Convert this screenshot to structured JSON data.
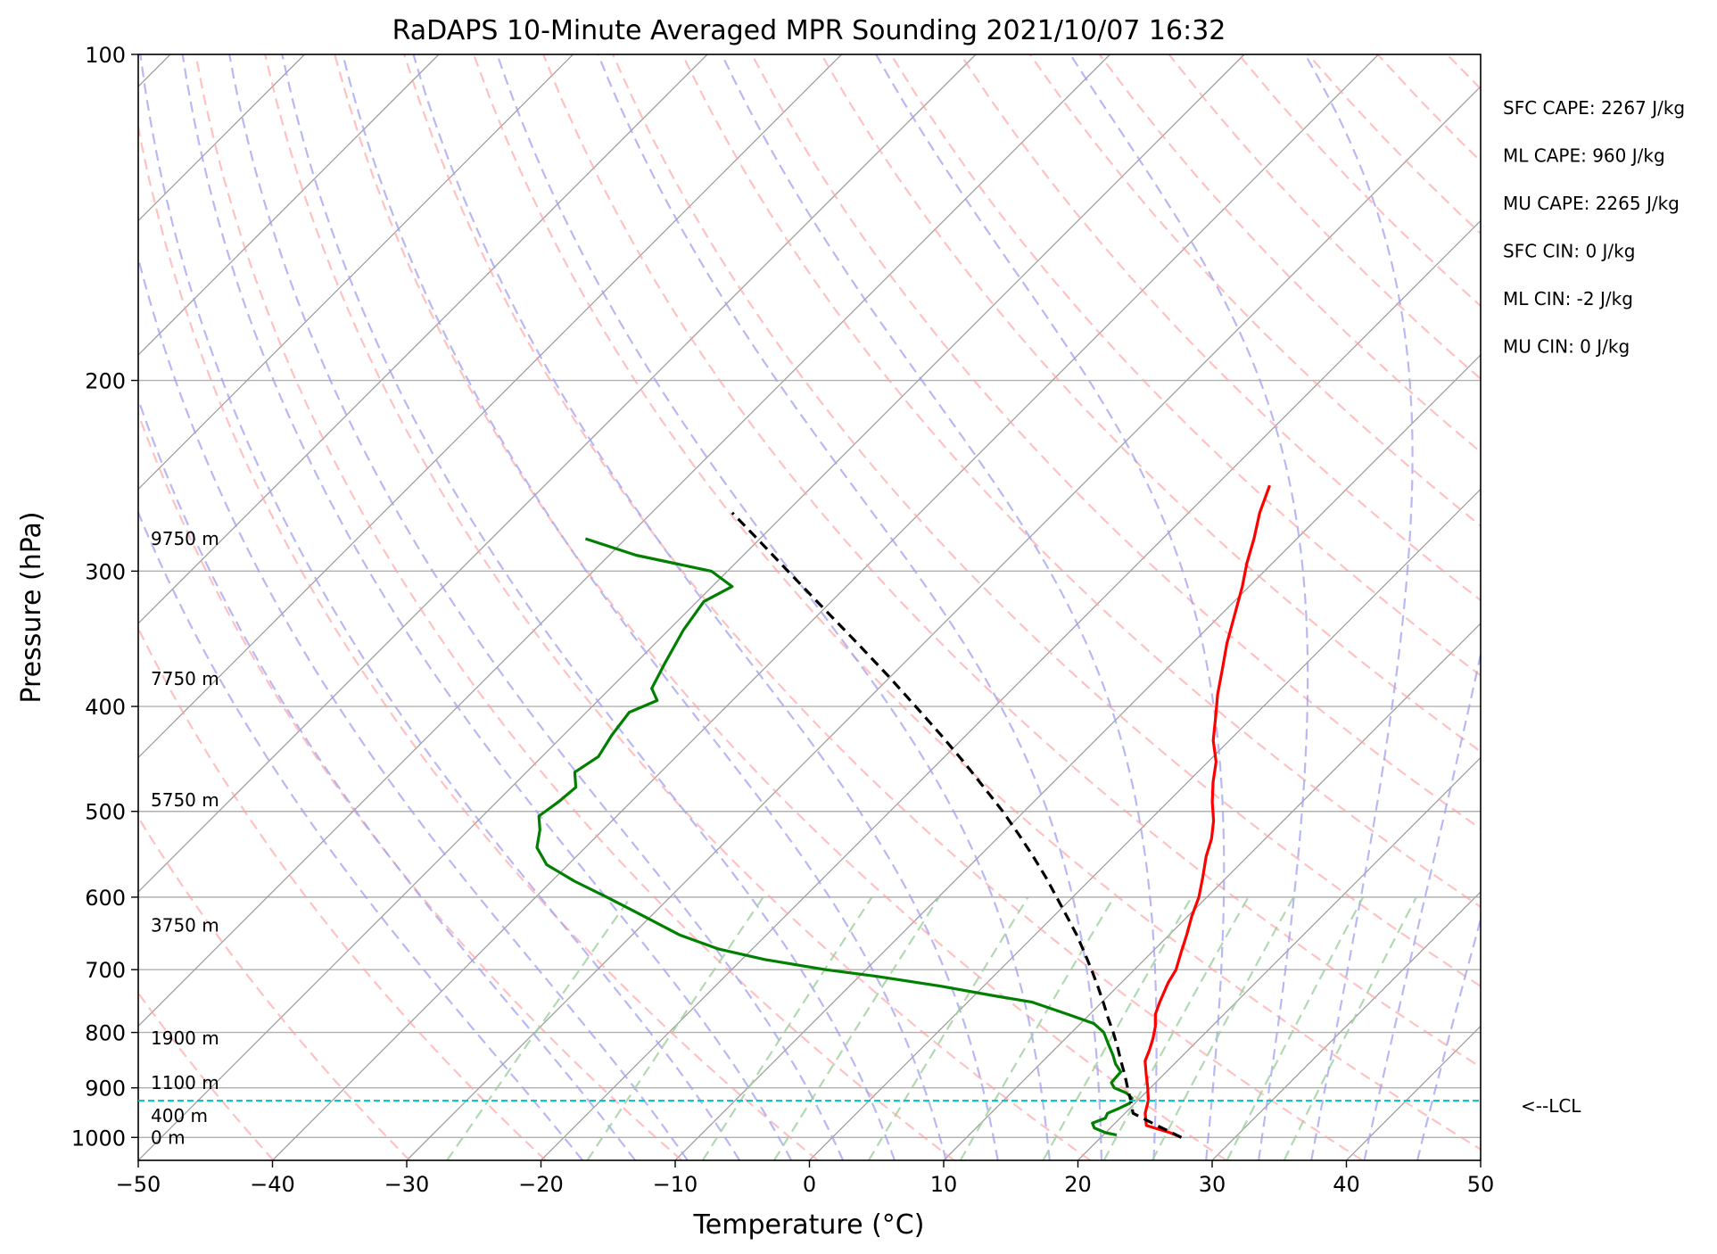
{
  "chart_data": {
    "type": "line",
    "title": "RaDAPS 10-Minute Averaged MPR Sounding 2021/10/07 16:32",
    "xlabel": "Temperature (°C)",
    "ylabel": "Pressure (hPa)",
    "xlim": [
      -50,
      50
    ],
    "ylim": [
      1050,
      100
    ],
    "y_scale": "log",
    "x_ticks": [
      -50,
      -40,
      -30,
      -20,
      -10,
      0,
      10,
      20,
      30,
      40,
      50
    ],
    "x_tick_labels": [
      "−50",
      "−40",
      "−30",
      "−20",
      "−10",
      "0",
      "10",
      "20",
      "30",
      "40",
      "50"
    ],
    "y_ticks": [
      100,
      200,
      300,
      400,
      500,
      600,
      700,
      800,
      900,
      1000
    ],
    "y_tick_labels": [
      "100",
      "200",
      "300",
      "400",
      "500",
      "600",
      "700",
      "800",
      "900",
      "1000"
    ],
    "skew": "skew-T log-p",
    "grid": true,
    "series": [
      {
        "key": "temperature",
        "color": "#ff0000",
        "style": "solid",
        "points": [
          [
            1000,
            26.0
          ],
          [
            990,
            24.8
          ],
          [
            975,
            22.5
          ],
          [
            950,
            21.5
          ],
          [
            925,
            20.8
          ],
          [
            900,
            19.8
          ],
          [
            875,
            18.7
          ],
          [
            850,
            17.6
          ],
          [
            830,
            17.1
          ],
          [
            810,
            16.5
          ],
          [
            790,
            15.8
          ],
          [
            770,
            14.9
          ],
          [
            750,
            14.3
          ],
          [
            720,
            13.5
          ],
          [
            700,
            13.1
          ],
          [
            675,
            12.2
          ],
          [
            650,
            11.3
          ],
          [
            625,
            10.3
          ],
          [
            600,
            9.4
          ],
          [
            575,
            8.2
          ],
          [
            550,
            6.9
          ],
          [
            530,
            6.0
          ],
          [
            510,
            4.8
          ],
          [
            490,
            3.3
          ],
          [
            470,
            1.9
          ],
          [
            450,
            0.6
          ],
          [
            430,
            -1.2
          ],
          [
            410,
            -2.7
          ],
          [
            390,
            -4.3
          ],
          [
            370,
            -5.8
          ],
          [
            350,
            -7.4
          ],
          [
            330,
            -8.9
          ],
          [
            310,
            -10.5
          ],
          [
            295,
            -11.9
          ],
          [
            280,
            -13.2
          ],
          [
            265,
            -14.7
          ],
          [
            250,
            -16.0
          ]
        ]
      },
      {
        "key": "dewpoint",
        "color": "#008000",
        "style": "solid",
        "points": [
          [
            995,
            21.0
          ],
          [
            990,
            20.0
          ],
          [
            980,
            18.8
          ],
          [
            970,
            18.3
          ],
          [
            960,
            18.9
          ],
          [
            950,
            18.7
          ],
          [
            940,
            19.2
          ],
          [
            930,
            19.6
          ],
          [
            920,
            19.4
          ],
          [
            910,
            18.6
          ],
          [
            900,
            17.3
          ],
          [
            890,
            16.7
          ],
          [
            870,
            16.6
          ],
          [
            855,
            15.6
          ],
          [
            840,
            14.8
          ],
          [
            820,
            13.6
          ],
          [
            800,
            12.4
          ],
          [
            785,
            11.0
          ],
          [
            770,
            8.4
          ],
          [
            750,
            4.8
          ],
          [
            740,
            1.5
          ],
          [
            725,
            -3.2
          ],
          [
            710,
            -8.7
          ],
          [
            700,
            -13.0
          ],
          [
            685,
            -18.3
          ],
          [
            670,
            -22.5
          ],
          [
            650,
            -26.5
          ],
          [
            625,
            -30.5
          ],
          [
            600,
            -34.7
          ],
          [
            580,
            -38.3
          ],
          [
            560,
            -41.6
          ],
          [
            540,
            -43.6
          ],
          [
            520,
            -44.7
          ],
          [
            505,
            -45.8
          ],
          [
            490,
            -45.4
          ],
          [
            475,
            -45.2
          ],
          [
            460,
            -46.4
          ],
          [
            445,
            -45.8
          ],
          [
            425,
            -46.4
          ],
          [
            405,
            -46.8
          ],
          [
            395,
            -45.6
          ],
          [
            385,
            -46.9
          ],
          [
            365,
            -47.8
          ],
          [
            340,
            -48.9
          ],
          [
            320,
            -49.5
          ],
          [
            310,
            -48.5
          ],
          [
            300,
            -51.2
          ],
          [
            290,
            -58.0
          ],
          [
            280,
            -63.0
          ]
        ]
      },
      {
        "key": "parcel",
        "color": "#000000",
        "style": "dashed",
        "points": [
          [
            1000,
            26.0
          ],
          [
            975,
            23.3
          ],
          [
            950,
            20.6
          ],
          [
            925,
            19.5
          ],
          [
            900,
            18.3
          ],
          [
            875,
            17.1
          ],
          [
            850,
            15.8
          ],
          [
            825,
            14.5
          ],
          [
            800,
            13.1
          ],
          [
            775,
            11.6
          ],
          [
            750,
            10.1
          ],
          [
            725,
            8.5
          ],
          [
            700,
            6.8
          ],
          [
            675,
            5.0
          ],
          [
            650,
            3.1
          ],
          [
            625,
            1.0
          ],
          [
            600,
            -1.2
          ],
          [
            575,
            -3.5
          ],
          [
            550,
            -6.0
          ],
          [
            525,
            -8.7
          ],
          [
            500,
            -11.6
          ],
          [
            475,
            -14.8
          ],
          [
            450,
            -18.2
          ],
          [
            425,
            -21.9
          ],
          [
            400,
            -25.9
          ],
          [
            375,
            -30.2
          ],
          [
            350,
            -34.9
          ],
          [
            325,
            -40.0
          ],
          [
            300,
            -45.5
          ],
          [
            280,
            -50.2
          ],
          [
            265,
            -54.0
          ]
        ]
      }
    ],
    "lcl": {
      "pressure": 925,
      "label": "<--LCL",
      "color": "#00c0c0"
    },
    "height_labels": [
      {
        "pressure": 1000,
        "label": "0 m"
      },
      {
        "pressure": 955,
        "label": "400 m"
      },
      {
        "pressure": 890,
        "label": "1100 m"
      },
      {
        "pressure": 810,
        "label": "1900 m"
      },
      {
        "pressure": 637,
        "label": "3750 m"
      },
      {
        "pressure": 488,
        "label": "5750 m"
      },
      {
        "pressure": 377,
        "label": "7750 m"
      },
      {
        "pressure": 280,
        "label": "9750 m"
      }
    ],
    "indices": [
      {
        "name": "SFC CAPE",
        "text": "SFC CAPE: 2267 J/kg"
      },
      {
        "name": "ML CAPE",
        "text": "ML CAPE: 960 J/kg"
      },
      {
        "name": "MU CAPE",
        "text": "MU CAPE: 2265 J/kg"
      },
      {
        "name": "SFC CIN",
        "text": "SFC CIN: 0 J/kg"
      },
      {
        "name": "ML CIN",
        "text": "ML CIN: -2 J/kg"
      },
      {
        "name": "MU CIN",
        "text": "MU CIN: 0 J/kg"
      }
    ],
    "background_lines": {
      "isotherms": {
        "color": "#9e9e9e"
      },
      "dry_adiabats": {
        "color": "#ffa0a0"
      },
      "moist_adiabats": {
        "color": "#a0a0f0"
      },
      "mixing_ratio": {
        "color": "#9ed09e"
      }
    }
  }
}
